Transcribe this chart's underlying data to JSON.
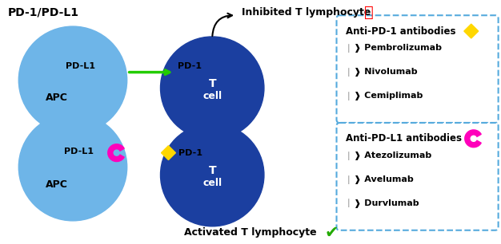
{
  "fig_width": 6.26,
  "fig_height": 3.06,
  "dpi": 100,
  "apc_color": "#6EB5E8",
  "tcell_color": "#1B3FA0",
  "arrow_green": "#22CC00",
  "box_border": "#55AADD",
  "diamond_yellow": "#FFD700",
  "diamond_magenta": "#FF00BB",
  "title_text": "PD-1/PD-L1",
  "top_label": "Inhibited T lymphocyte",
  "bottom_label": "Activated T lymphocyte",
  "box1_title": "Anti-PD-1 antibodies",
  "box1_items": [
    "Pembrolizumab",
    "Nivolumab",
    "Cemiplimab"
  ],
  "box2_title": "Anti-PD-L1 antibodies",
  "box2_items": [
    "Atezolizumab",
    "Avelumab",
    "Durvlumab"
  ]
}
